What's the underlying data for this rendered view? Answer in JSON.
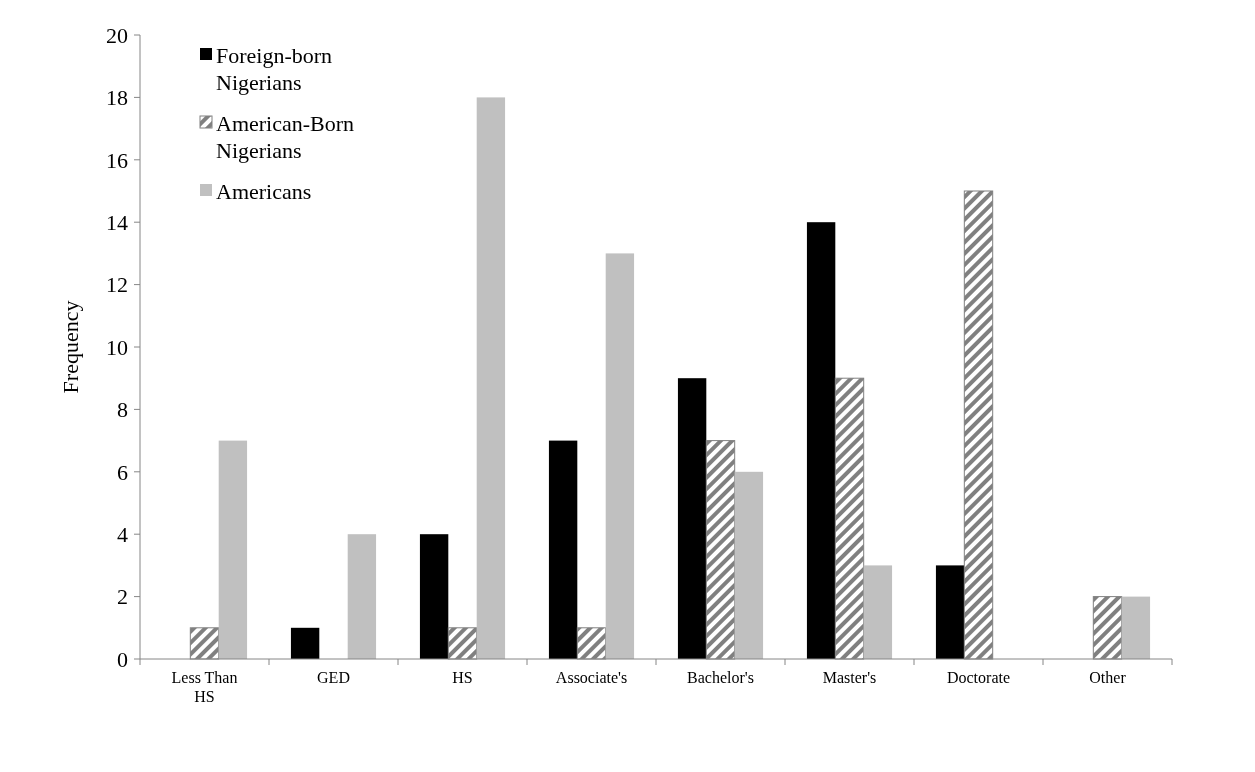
{
  "chart_data": {
    "type": "bar",
    "ylabel": "Frequency",
    "categories": [
      "Less Than HS",
      "GED",
      "HS",
      "Associate's",
      "Bachelor's",
      "Master's",
      "Doctorate",
      "Other"
    ],
    "series": [
      {
        "name": "Foreign-born Nigerians",
        "color": "#000000",
        "values": [
          0,
          1,
          4,
          7,
          9,
          14,
          3,
          0
        ]
      },
      {
        "name": "American-Born Nigerians",
        "color": "#808080",
        "values": [
          1,
          0,
          1,
          1,
          7,
          9,
          15,
          2
        ]
      },
      {
        "name": "Americans",
        "color": "#c0c0c0",
        "values": [
          7,
          4,
          18,
          13,
          6,
          3,
          0,
          2
        ]
      }
    ],
    "ylim": [
      0,
      20
    ],
    "yticks": [
      0,
      2,
      4,
      6,
      8,
      10,
      12,
      14,
      16,
      18,
      20
    ],
    "grid": false,
    "legend": "top left"
  }
}
